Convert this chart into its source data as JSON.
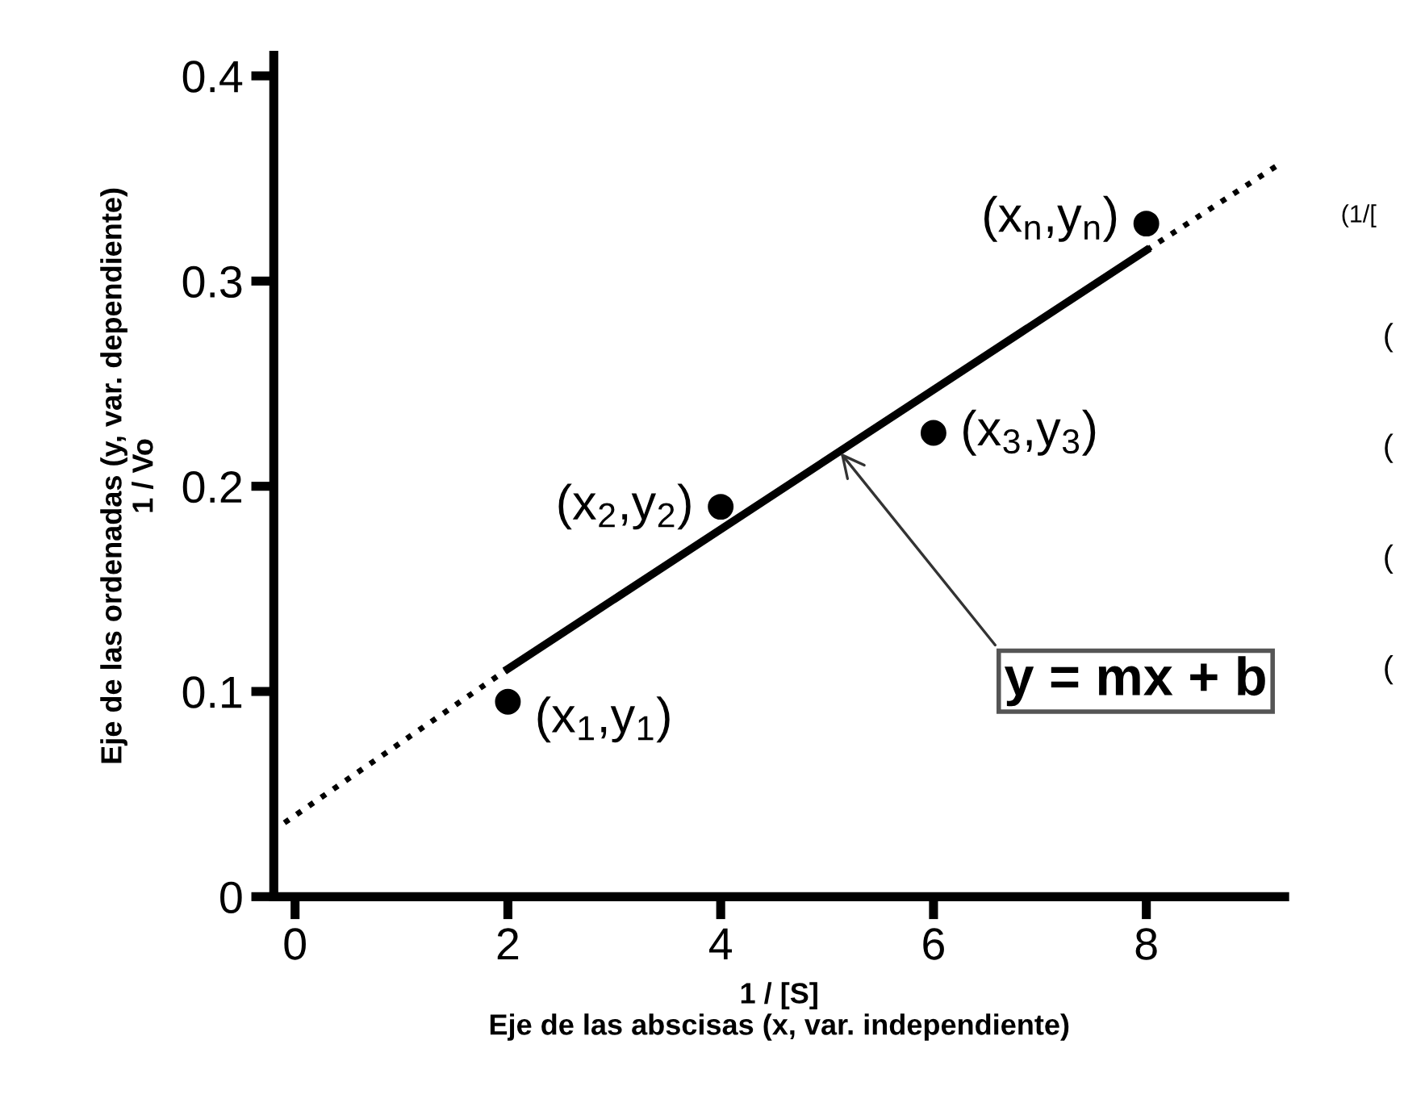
{
  "chart_data": {
    "type": "scatter",
    "xlabel": "1 / [S]\nEje de las abscisas (x, var. independiente)",
    "ylabel": "Eje de las ordenadas (y, var. dependiente)\n1 / Vo",
    "xlim": [
      -0.2,
      9.3
    ],
    "ylim": [
      0,
      0.41
    ],
    "xticks": [
      0,
      2,
      4,
      6,
      8
    ],
    "yticks": [
      0,
      0.1,
      0.2,
      0.3,
      0.4
    ],
    "grid": false,
    "series": [
      {
        "color": "#000000",
        "marker": "circle",
        "x": [
          2,
          4,
          6,
          8
        ],
        "values": [
          0.095,
          0.19,
          0.226,
          0.328
        ]
      },
      {
        "type": "line",
        "color": "#000000",
        "line_style": "solid",
        "marker": "none",
        "x": [
          2,
          8
        ],
        "values": [
          0.111,
          0.315
        ]
      },
      {
        "type": "line",
        "color": "#000000",
        "line_style": "dotted",
        "marker": "none",
        "x": [
          -0.1,
          2
        ],
        "values": [
          0.036,
          0.111
        ]
      },
      {
        "type": "line",
        "color": "#000000",
        "line_style": "dotted",
        "marker": "none",
        "x": [
          8,
          9.25
        ],
        "values": [
          0.315,
          0.357
        ]
      }
    ],
    "annotations": [
      {
        "text": "(x$_{1}$,y$_{1}$)",
        "x": 2,
        "y": 0.095
      },
      {
        "text": "(x$_{2}$,y$_{2}$)",
        "x": 4,
        "y": 0.19
      },
      {
        "text": "(x$_{3}$,y$_{3}$)",
        "x": 6,
        "y": 0.226
      },
      {
        "text": "(x$_{n}$,y$_{n}$)",
        "x": 8,
        "y": 0.328
      },
      {
        "text": "y = mx + b",
        "x": 5.1,
        "y": 0.218
      },
      "(1/[",
      "(",
      "(",
      "(",
      "("
    ]
  }
}
